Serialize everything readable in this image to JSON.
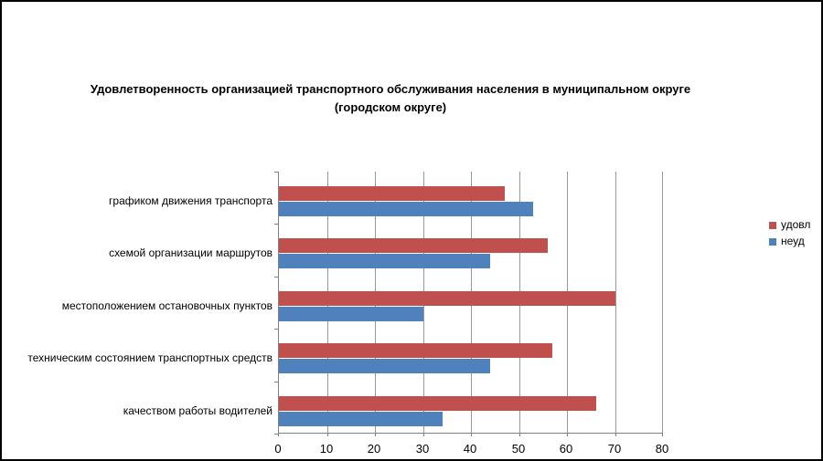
{
  "window": {
    "background_color": "#ffffff",
    "border_color": "#000000"
  },
  "chart_data": {
    "type": "bar",
    "orientation": "horizontal",
    "title_lines": [
      "Удовлетворенность организацией транспортного обслуживания населения в муниципальном округе",
      "(городском округе)"
    ],
    "categories": [
      "графиком движения транспорта",
      "схемой организации маршрутов",
      "местоположением остановочных пунктов",
      "техническим состоянием транспортных средств",
      "качеством работы водителей"
    ],
    "series": [
      {
        "name": "удовл",
        "color": "#C0504D",
        "values": [
          47,
          56,
          70,
          57,
          66
        ]
      },
      {
        "name": "неуд",
        "color": "#4F81BD",
        "values": [
          53,
          44,
          30,
          44,
          34
        ]
      }
    ],
    "xlim": [
      0,
      80
    ],
    "xticks": [
      0,
      10,
      20,
      30,
      40,
      50,
      60,
      70,
      80
    ],
    "grid": "vertical-only",
    "legend_position": "right",
    "axis_color": "#808080",
    "gridline_color": "#999999",
    "text_color": "#000000"
  }
}
